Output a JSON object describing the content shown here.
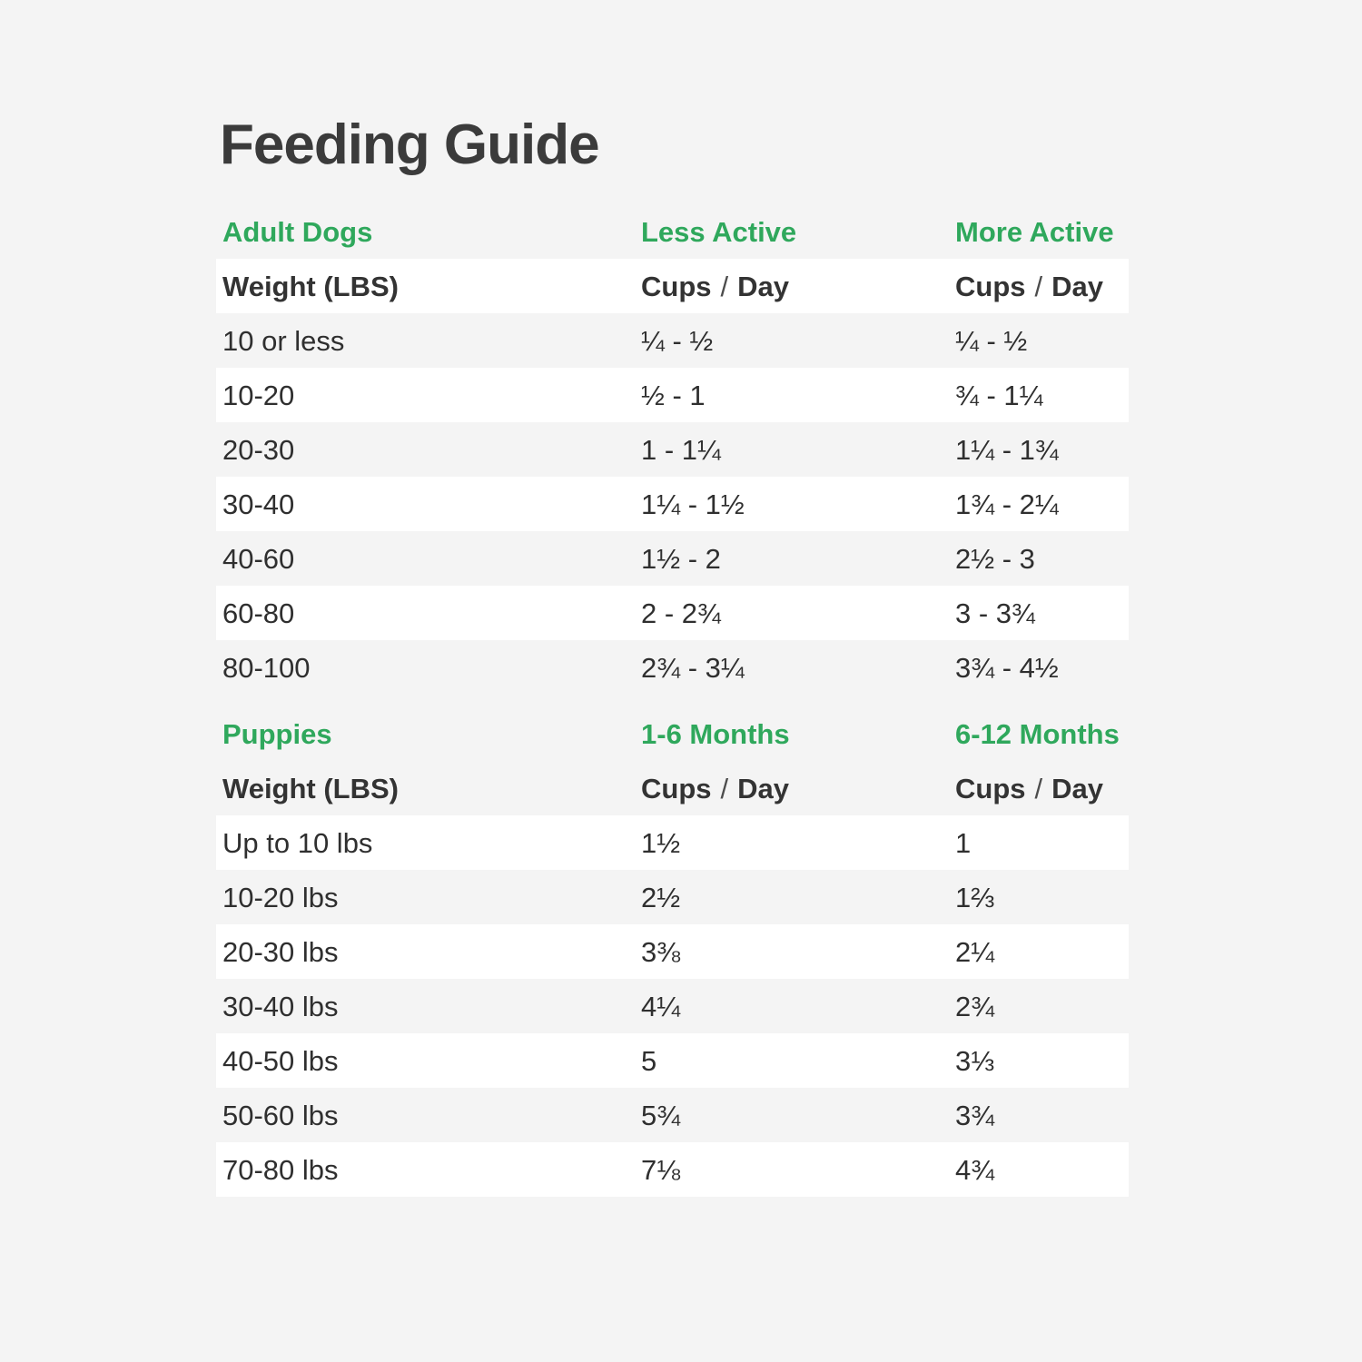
{
  "title": "Feeding Guide",
  "colors": {
    "background": "#F4F4F4",
    "row_white": "#FFFFFF",
    "accent_green": "#2FA85C",
    "text_dark": "#373737",
    "slash_gray": "#4C4C4C"
  },
  "cups_day": {
    "cups": "Cups",
    "slash": "/",
    "day": "Day"
  },
  "chart_data": [
    {
      "type": "table",
      "section": "Adult Dogs",
      "col2_label": "Less Active",
      "col3_label": "More Active",
      "weight_header": "Weight (LBS)",
      "value_header": "Cups / Day",
      "columns": [
        "Weight (LBS)",
        "Less Active Cups / Day",
        "More Active Cups / Day"
      ],
      "rows": [
        [
          "10 or less",
          "¼ - ½",
          "¼ - ½"
        ],
        [
          "10-20",
          "½ - 1",
          "¾ - 1¼"
        ],
        [
          "20-30",
          "1 - 1¼",
          "1¼ - 1¾"
        ],
        [
          "30-40",
          "1¼ - 1½",
          "1¾ - 2¼"
        ],
        [
          "40-60",
          "1½ - 2",
          "2½ - 3"
        ],
        [
          "60-80",
          "2 - 2¾",
          "3 - 3¾"
        ],
        [
          "80-100",
          "2¾ - 3¼",
          "3¾ - 4½"
        ]
      ]
    },
    {
      "type": "table",
      "section": "Puppies",
      "col2_label": "1-6 Months",
      "col3_label": "6-12 Months",
      "weight_header": "Weight (LBS)",
      "value_header": "Cups / Day",
      "columns": [
        "Weight (LBS)",
        "1-6 Months Cups / Day",
        "6-12 Months Cups / Day"
      ],
      "rows": [
        [
          "Up to 10 lbs",
          "1½",
          "1"
        ],
        [
          "10-20 lbs",
          "2½",
          "1⅔"
        ],
        [
          "20-30 lbs",
          "3⅜",
          "2¼"
        ],
        [
          "30-40 lbs",
          "4¼",
          "2¾"
        ],
        [
          "40-50 lbs",
          "5",
          "3⅓"
        ],
        [
          "50-60 lbs",
          "5¾",
          "3¾"
        ],
        [
          "70-80 lbs",
          "7⅛",
          "4¾"
        ]
      ]
    }
  ]
}
